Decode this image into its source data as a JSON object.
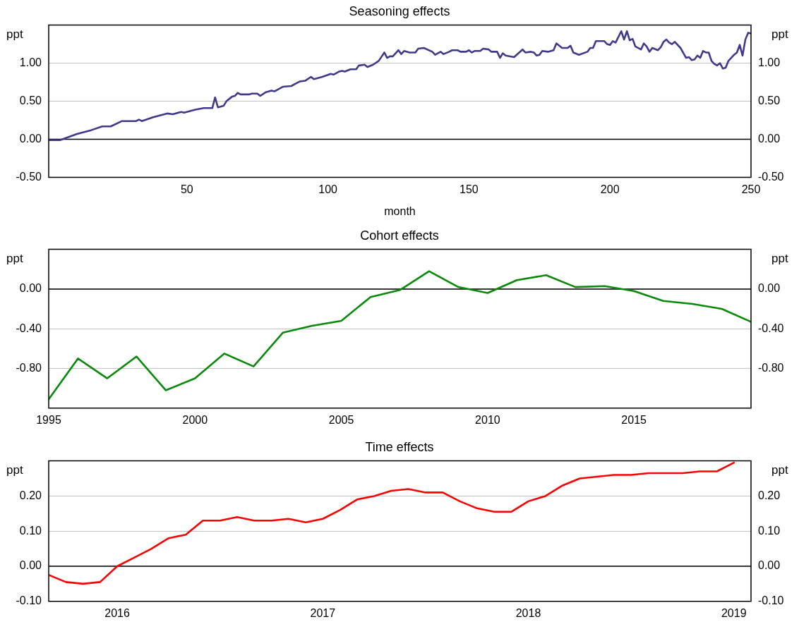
{
  "chart_data": [
    {
      "type": "line",
      "title": "Seasoning effects",
      "xlabel": "month",
      "ylabel": "ppt",
      "y2label": "ppt",
      "grid": "y",
      "x": [
        1,
        5,
        11,
        16,
        20,
        23,
        27,
        32,
        33,
        34,
        38,
        43,
        45,
        48,
        49,
        53,
        56,
        59,
        60,
        61,
        63,
        64,
        66,
        67,
        68,
        69,
        72,
        73,
        75,
        76,
        78,
        80,
        81,
        84,
        87,
        89,
        90,
        92,
        94,
        95,
        98,
        101,
        102,
        104,
        105,
        106,
        108,
        110,
        111,
        113,
        114,
        116,
        118,
        120,
        121,
        122,
        123,
        125,
        126,
        127,
        129,
        131,
        132,
        134,
        137,
        138,
        140,
        141,
        143,
        144,
        146,
        147,
        149,
        150,
        151,
        152,
        154,
        155,
        157,
        158,
        160,
        161,
        162,
        163,
        166,
        169,
        170,
        172,
        173,
        174,
        175,
        176,
        178,
        180,
        181,
        183,
        185,
        186,
        187,
        189,
        192,
        193,
        194,
        195,
        198,
        199,
        200,
        201,
        202,
        204,
        205,
        206,
        207,
        208,
        209,
        211,
        212,
        213,
        214,
        215,
        217,
        218,
        219,
        220,
        221,
        222,
        223,
        225,
        227,
        228,
        229,
        230,
        231,
        232,
        233,
        234,
        235,
        236,
        237,
        238,
        239,
        240,
        241,
        242,
        244,
        245,
        246,
        247,
        248,
        249,
        250
      ],
      "series": [
        {
          "color": "#403a8c",
          "values": [
            -0.01,
            -0.01,
            0.07,
            0.12,
            0.17,
            0.17,
            0.24,
            0.24,
            0.26,
            0.24,
            0.29,
            0.34,
            0.33,
            0.36,
            0.35,
            0.39,
            0.41,
            0.41,
            0.55,
            0.42,
            0.44,
            0.5,
            0.56,
            0.57,
            0.61,
            0.59,
            0.59,
            0.6,
            0.6,
            0.57,
            0.62,
            0.64,
            0.63,
            0.69,
            0.7,
            0.74,
            0.76,
            0.77,
            0.82,
            0.79,
            0.82,
            0.86,
            0.85,
            0.89,
            0.9,
            0.89,
            0.92,
            0.92,
            0.97,
            0.98,
            0.95,
            0.98,
            1.03,
            1.14,
            1.07,
            1.09,
            1.09,
            1.17,
            1.12,
            1.16,
            1.14,
            1.14,
            1.19,
            1.2,
            1.15,
            1.11,
            1.15,
            1.12,
            1.15,
            1.17,
            1.17,
            1.15,
            1.15,
            1.17,
            1.14,
            1.16,
            1.16,
            1.19,
            1.18,
            1.15,
            1.15,
            1.07,
            1.13,
            1.1,
            1.08,
            1.18,
            1.14,
            1.15,
            1.14,
            1.1,
            1.11,
            1.16,
            1.15,
            1.17,
            1.26,
            1.2,
            1.2,
            1.23,
            1.14,
            1.11,
            1.15,
            1.2,
            1.2,
            1.29,
            1.29,
            1.25,
            1.24,
            1.29,
            1.27,
            1.42,
            1.31,
            1.42,
            1.3,
            1.32,
            1.22,
            1.18,
            1.26,
            1.22,
            1.15,
            1.2,
            1.17,
            1.21,
            1.28,
            1.31,
            1.27,
            1.25,
            1.28,
            1.2,
            1.07,
            1.08,
            1.04,
            1.05,
            1.1,
            1.07,
            1.16,
            1.14,
            1.14,
            1.03,
            0.99,
            0.97,
            1.0,
            0.93,
            0.94,
            1.03,
            1.11,
            1.14,
            1.24,
            1.1,
            1.31,
            1.4,
            1.39
          ]
        }
      ],
      "xlim": [
        1,
        250
      ],
      "xticks": [
        50,
        100,
        150,
        200,
        250
      ],
      "ylim": [
        -0.5,
        1.5
      ],
      "yticks": [
        {
          "value": -0.5,
          "label": "-0.50"
        },
        {
          "value": 0,
          "label": "0.00"
        },
        {
          "value": 0.5,
          "label": "0.50"
        },
        {
          "value": 1,
          "label": "1.00"
        }
      ],
      "y2lim": [
        -0.5,
        1.5
      ],
      "y2ticks": [
        {
          "value": -0.5,
          "label": "-0.50"
        },
        {
          "value": 0,
          "label": "0.00"
        },
        {
          "value": 0.5,
          "label": "0.50"
        },
        {
          "value": 1,
          "label": "1.00"
        }
      ],
      "ref_lines": [
        {
          "axis": "y",
          "value": 0,
          "color": "#000000"
        }
      ]
    },
    {
      "type": "line",
      "title": "Cohort effects",
      "ylabel": "ppt",
      "y2label": "ppt",
      "grid": "y",
      "x": [
        1995,
        1996,
        1997,
        1998,
        1999,
        2000,
        2001,
        2002,
        2003,
        2004,
        2005,
        2006,
        2007,
        2008,
        2009,
        2010,
        2011,
        2012,
        2013,
        2014,
        2015,
        2016,
        2017,
        2018,
        2019
      ],
      "series": [
        {
          "color": "#0a8a0a",
          "values": [
            -1.11,
            -0.7,
            -0.9,
            -0.68,
            -1.02,
            -0.9,
            -0.65,
            -0.78,
            -0.44,
            -0.37,
            -0.32,
            -0.08,
            -0.01,
            0.18,
            0.02,
            -0.04,
            0.09,
            0.14,
            0.02,
            0.03,
            -0.02,
            -0.12,
            -0.15,
            -0.2,
            -0.33
          ]
        }
      ],
      "xlim": [
        1995,
        2019
      ],
      "xticks": [
        1995,
        2000,
        2005,
        2010,
        2015
      ],
      "ylim": [
        -1.2,
        0.4
      ],
      "yticks": [
        {
          "value": -0.8,
          "label": "-0.80"
        },
        {
          "value": -0.4,
          "label": "-0.40"
        },
        {
          "value": 0,
          "label": "0.00"
        }
      ],
      "y2lim": [
        -1.2,
        0.4
      ],
      "y2ticks": [
        {
          "value": -0.8,
          "label": "-0.80"
        },
        {
          "value": -0.4,
          "label": "-0.40"
        },
        {
          "value": 0,
          "label": "0.00"
        }
      ],
      "ref_lines": [
        {
          "axis": "y",
          "value": 0,
          "color": "#000000"
        }
      ]
    },
    {
      "type": "line",
      "title": "Time effects",
      "ylabel": "ppt",
      "y2label": "ppt",
      "grid": "y",
      "x": [
        "2015-09",
        "2015-10",
        "2015-11",
        "2015-12",
        "2016-01",
        "2016-02",
        "2016-03",
        "2016-04",
        "2016-05",
        "2016-06",
        "2016-07",
        "2016-08",
        "2016-09",
        "2016-10",
        "2016-11",
        "2016-12",
        "2017-01",
        "2017-02",
        "2017-03",
        "2017-04",
        "2017-05",
        "2017-06",
        "2017-07",
        "2017-08",
        "2017-09",
        "2017-10",
        "2017-11",
        "2017-12",
        "2018-01",
        "2018-02",
        "2018-03",
        "2018-04",
        "2018-05",
        "2018-06",
        "2018-07",
        "2018-08",
        "2018-09",
        "2018-10",
        "2018-11",
        "2018-12",
        "2019-01"
      ],
      "series": [
        {
          "color": "#ff0000",
          "values": [
            -0.025,
            -0.045,
            -0.05,
            -0.045,
            0.0,
            0.025,
            0.05,
            0.08,
            0.09,
            0.13,
            0.13,
            0.14,
            0.13,
            0.13,
            0.135,
            0.125,
            0.135,
            0.16,
            0.19,
            0.2,
            0.215,
            0.22,
            0.21,
            0.21,
            0.185,
            0.165,
            0.155,
            0.155,
            0.185,
            0.2,
            0.23,
            0.25,
            0.255,
            0.26,
            0.26,
            0.265,
            0.265,
            0.265,
            0.27,
            0.27,
            0.295
          ]
        }
      ],
      "xlim": [
        "2015-09",
        "2019-02"
      ],
      "xticks": [
        "2016",
        "2017",
        "2018",
        "2019"
      ],
      "ylim": [
        -0.1,
        0.3
      ],
      "yticks": [
        {
          "value": -0.1,
          "label": "-0.10"
        },
        {
          "value": 0,
          "label": "0.00"
        },
        {
          "value": 0.1,
          "label": "0.10"
        },
        {
          "value": 0.2,
          "label": "0.20"
        }
      ],
      "y2lim": [
        -0.1,
        0.3
      ],
      "y2ticks": [
        {
          "value": -0.1,
          "label": "-0.10"
        },
        {
          "value": 0,
          "label": "0.00"
        },
        {
          "value": 0.1,
          "label": "0.10"
        },
        {
          "value": 0.2,
          "label": "0.20"
        }
      ],
      "ref_lines": [
        {
          "axis": "y",
          "value": 0,
          "color": "#000000"
        }
      ]
    }
  ]
}
